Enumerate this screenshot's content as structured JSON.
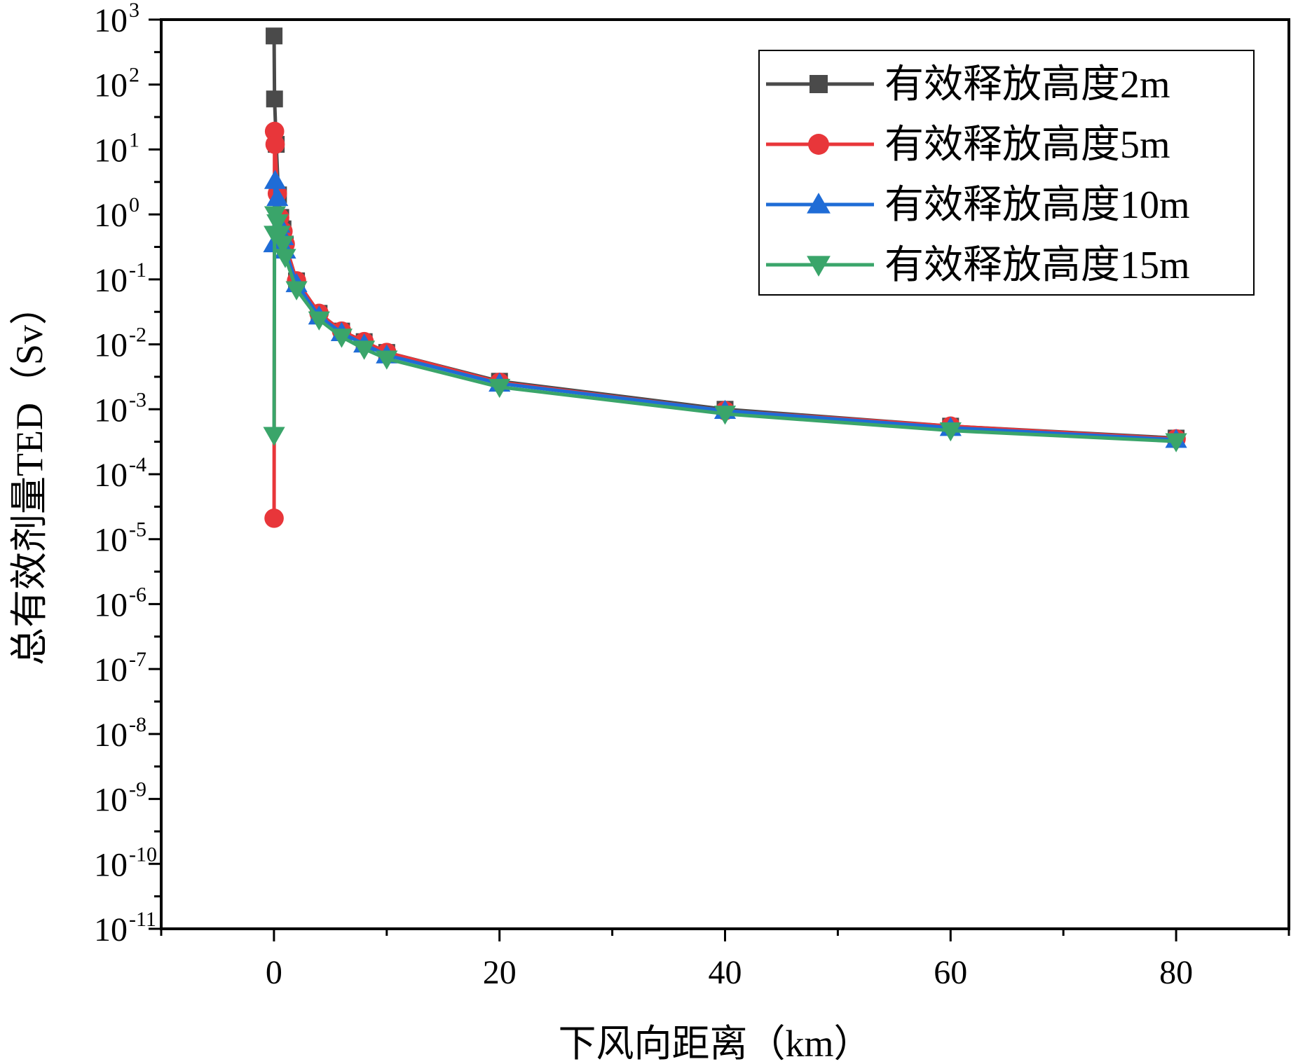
{
  "chart_data": {
    "type": "line",
    "xlabel": "下风向距离（km）",
    "ylabel": "总有效剂量TED（Sv）",
    "xlim": [
      -10,
      90
    ],
    "ylim": [
      1e-11,
      1000
    ],
    "y_scale": "log",
    "grid": false,
    "legend_position": "top-right",
    "x_ticks": [
      "0",
      "20",
      "40",
      "60",
      "80"
    ],
    "y_ticks": [
      {
        "base": "10",
        "exp": "3"
      },
      {
        "base": "10",
        "exp": "2"
      },
      {
        "base": "10",
        "exp": "1"
      },
      {
        "base": "10",
        "exp": "0"
      },
      {
        "base": "10",
        "exp": "-1"
      },
      {
        "base": "10",
        "exp": "-2"
      },
      {
        "base": "10",
        "exp": "-3"
      },
      {
        "base": "10",
        "exp": "-4"
      },
      {
        "base": "10",
        "exp": "-5"
      },
      {
        "base": "10",
        "exp": "-6"
      },
      {
        "base": "10",
        "exp": "-7"
      },
      {
        "base": "10",
        "exp": "-8"
      },
      {
        "base": "10",
        "exp": "-9"
      },
      {
        "base": "10",
        "exp": "-10"
      },
      {
        "base": "10",
        "exp": "-11"
      }
    ],
    "series": [
      {
        "name": "有效释放高度2m",
        "color": "#4a4a4a",
        "marker": "square",
        "points": [
          [
            0.01,
            560
          ],
          [
            0.05,
            60
          ],
          [
            0.2,
            12
          ],
          [
            0.4,
            2.0
          ],
          [
            0.6,
            0.9
          ],
          [
            0.8,
            0.6
          ],
          [
            1.0,
            0.35
          ],
          [
            2.0,
            0.095
          ],
          [
            4.0,
            0.03
          ],
          [
            6.0,
            0.016
          ],
          [
            8.0,
            0.011
          ],
          [
            10.0,
            0.0075
          ],
          [
            20.0,
            0.0027
          ],
          [
            40.0,
            0.001
          ],
          [
            60.0,
            0.00055
          ],
          [
            80.0,
            0.00036
          ]
        ]
      },
      {
        "name": "有效释放高度5m",
        "color": "#e8363a",
        "marker": "circle",
        "points": [
          [
            0.01,
            2.1e-05
          ],
          [
            0.05,
            19
          ],
          [
            0.1,
            12
          ],
          [
            0.3,
            2.1
          ],
          [
            0.5,
            0.9
          ],
          [
            0.8,
            0.55
          ],
          [
            1.0,
            0.35
          ],
          [
            2.0,
            0.095
          ],
          [
            4.0,
            0.03
          ],
          [
            6.0,
            0.016
          ],
          [
            8.0,
            0.011
          ],
          [
            10.0,
            0.0075
          ],
          [
            20.0,
            0.0026
          ],
          [
            40.0,
            0.00095
          ],
          [
            60.0,
            0.00055
          ],
          [
            80.0,
            0.00035
          ]
        ]
      },
      {
        "name": "有效释放高度10m",
        "color": "#1f6cd6",
        "marker": "triangle-up",
        "points": [
          [
            0.01,
            0.35
          ],
          [
            0.1,
            3.3
          ],
          [
            0.3,
            1.8
          ],
          [
            0.5,
            0.7
          ],
          [
            0.8,
            0.45
          ],
          [
            1.0,
            0.28
          ],
          [
            2.0,
            0.085
          ],
          [
            4.0,
            0.027
          ],
          [
            6.0,
            0.015
          ],
          [
            8.0,
            0.01
          ],
          [
            10.0,
            0.0068
          ],
          [
            20.0,
            0.0025
          ],
          [
            40.0,
            0.00095
          ],
          [
            60.0,
            0.00052
          ],
          [
            80.0,
            0.00034
          ]
        ]
      },
      {
        "name": "有效释放高度15m",
        "color": "#3aa56a",
        "marker": "triangle-down",
        "points": [
          [
            0.01,
            0.0004
          ],
          [
            0.05,
            0.5
          ],
          [
            0.1,
            1.0
          ],
          [
            0.3,
            0.75
          ],
          [
            0.5,
            0.5
          ],
          [
            0.8,
            0.35
          ],
          [
            1.0,
            0.22
          ],
          [
            2.0,
            0.07
          ],
          [
            4.0,
            0.024
          ],
          [
            6.0,
            0.013
          ],
          [
            8.0,
            0.0085
          ],
          [
            10.0,
            0.006
          ],
          [
            20.0,
            0.0022
          ],
          [
            40.0,
            0.00085
          ],
          [
            60.0,
            0.00047
          ],
          [
            80.0,
            0.00032
          ]
        ]
      }
    ]
  }
}
